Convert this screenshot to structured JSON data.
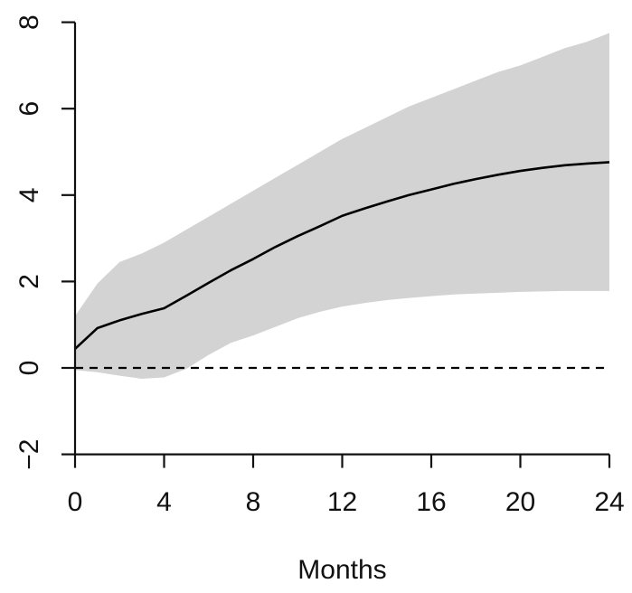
{
  "chart_data": {
    "type": "line",
    "title": "",
    "xlabel": "Months",
    "ylabel": "",
    "x": [
      0,
      1,
      2,
      3,
      4,
      5,
      6,
      7,
      8,
      9,
      10,
      11,
      12,
      13,
      14,
      15,
      16,
      17,
      18,
      19,
      20,
      21,
      22,
      23,
      24
    ],
    "series": [
      {
        "name": "impulse-response",
        "values": [
          0.44,
          0.92,
          1.1,
          1.25,
          1.38,
          1.67,
          1.97,
          2.26,
          2.52,
          2.8,
          3.05,
          3.28,
          3.52,
          3.69,
          3.85,
          4.0,
          4.13,
          4.26,
          4.37,
          4.47,
          4.56,
          4.63,
          4.69,
          4.73,
          4.76
        ]
      }
    ],
    "band": {
      "name": "confidence-band",
      "upper": [
        1.2,
        1.95,
        2.45,
        2.65,
        2.9,
        3.2,
        3.5,
        3.8,
        4.1,
        4.4,
        4.7,
        5.0,
        5.3,
        5.55,
        5.8,
        6.05,
        6.25,
        6.45,
        6.65,
        6.85,
        7.0,
        7.2,
        7.4,
        7.55,
        7.75
      ],
      "lower": [
        -0.05,
        -0.1,
        -0.18,
        -0.25,
        -0.22,
        -0.02,
        0.3,
        0.58,
        0.75,
        0.95,
        1.15,
        1.3,
        1.42,
        1.5,
        1.57,
        1.62,
        1.66,
        1.7,
        1.72,
        1.74,
        1.76,
        1.77,
        1.78,
        1.78,
        1.78
      ]
    },
    "reference_line": {
      "y": 0,
      "style": "dashed"
    },
    "x_ticks": [
      0,
      4,
      8,
      12,
      16,
      20,
      24
    ],
    "y_ticks": [
      -2,
      0,
      2,
      4,
      6,
      8
    ],
    "xlim": [
      0,
      24
    ],
    "ylim": [
      -2,
      8
    ],
    "grid": false,
    "legend": false,
    "colors": {
      "line": "#000000",
      "band": "#d3d3d3",
      "axis": "#111111",
      "background": "#ffffff"
    }
  }
}
